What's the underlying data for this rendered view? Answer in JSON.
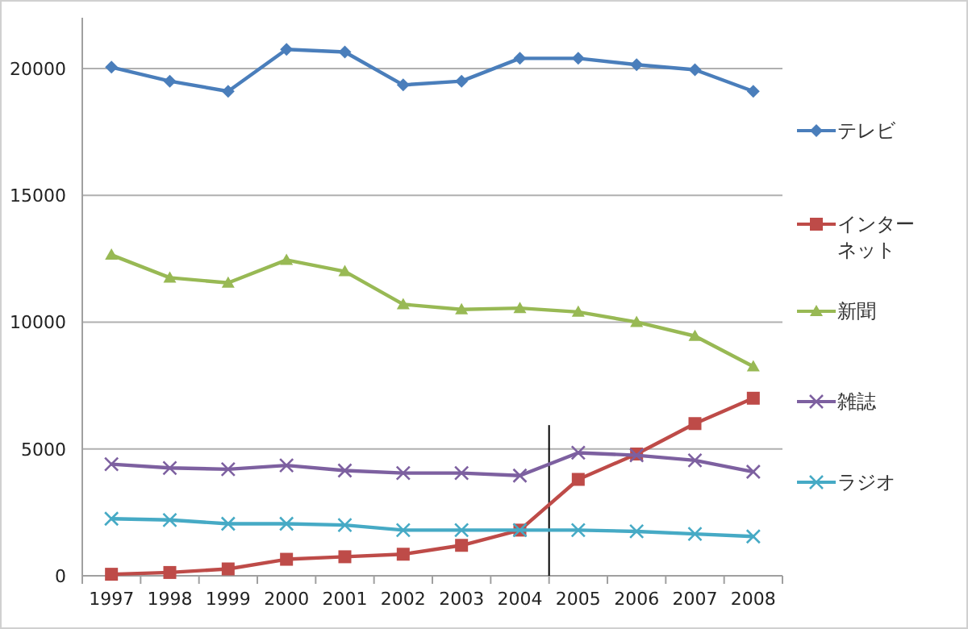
{
  "chart_data": {
    "type": "line",
    "categories": [
      "1997",
      "1998",
      "1999",
      "2000",
      "2001",
      "2002",
      "2003",
      "2004",
      "2005",
      "2006",
      "2007",
      "2008"
    ],
    "series": [
      {
        "name": "テレビ",
        "color": "#4a7ebb",
        "marker": "diamond",
        "values": [
          20050,
          19500,
          19100,
          20750,
          20650,
          19350,
          19500,
          20400,
          20400,
          20150,
          19950,
          19100
        ]
      },
      {
        "name": "インターネット",
        "color": "#be4b48",
        "marker": "square",
        "values": [
          60,
          130,
          270,
          650,
          750,
          850,
          1200,
          1800,
          3800,
          4800,
          6000,
          7000
        ]
      },
      {
        "name": "新聞",
        "color": "#98b954",
        "marker": "triangle",
        "values": [
          12650,
          11750,
          11550,
          12450,
          12000,
          10700,
          10500,
          10550,
          10400,
          10000,
          9450,
          8250
        ]
      },
      {
        "name": "雑誌",
        "color": "#7d60a0",
        "marker": "cross",
        "values": [
          4400,
          4250,
          4200,
          4350,
          4150,
          4050,
          4050,
          3950,
          4850,
          4750,
          4550,
          4100
        ]
      },
      {
        "name": "ラジオ",
        "color": "#46aac5",
        "marker": "cross",
        "values": [
          2250,
          2200,
          2050,
          2050,
          2000,
          1800,
          1800,
          1800,
          1800,
          1750,
          1650,
          1550
        ]
      }
    ],
    "ylim": [
      0,
      22000
    ],
    "yticks": [
      0,
      5000,
      10000,
      15000,
      20000
    ],
    "grid": "y",
    "legend": "right"
  }
}
